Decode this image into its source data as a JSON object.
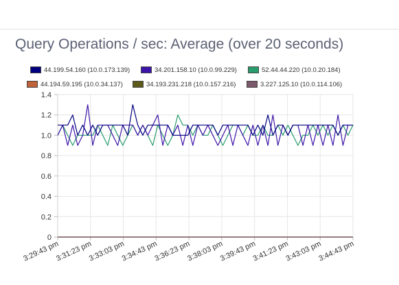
{
  "chart_data": {
    "type": "line",
    "title": "Query Operations / sec: Average (over 20 seconds)",
    "xlabel": "",
    "ylabel": "",
    "ylim": [
      0,
      1.4
    ],
    "yticks": [
      "0",
      "0.2",
      "0.4",
      "0.6",
      "0.8",
      "1.0",
      "1.2",
      "1.4"
    ],
    "grid": true,
    "legend_position": "top",
    "x_tick_labels": [
      "3:29:43 pm",
      "3:31:23 pm",
      "3:33:03 pm",
      "3:34:43 pm",
      "3:36:23 pm",
      "3:38:03 pm",
      "3:39:43 pm",
      "3:41:23 pm",
      "3:43:03 pm",
      "3:44:43 pm"
    ],
    "series": [
      {
        "name": "44.199.54.160 (10.0.173.139)",
        "color": "#00007f",
        "values": [
          1.1,
          1.1,
          1.1,
          1.2,
          1.0,
          1.1,
          1.0,
          1.1,
          1.0,
          1.1,
          1.1,
          1.1,
          1.1,
          1.1,
          1.0,
          1.3,
          1.1,
          1.0,
          1.1,
          1.1,
          1.1,
          1.1,
          1.1,
          1.0,
          1.0,
          1.0,
          1.0,
          1.1,
          1.1,
          1.1,
          1.1,
          1.1,
          1.0,
          1.1,
          1.1,
          1.1,
          1.1,
          1.1,
          1.1,
          1.0,
          1.1,
          1.0,
          1.2,
          1.0,
          1.1,
          1.1,
          1.0,
          1.1,
          1.1,
          1.1,
          1.1,
          1.1,
          1.1,
          1.1,
          1.1,
          1.1,
          1.0,
          1.1,
          1.1,
          1.1
        ]
      },
      {
        "name": "34.201.158.10 (10.0.99.229)",
        "color": "#3d14a8",
        "values": [
          1.0,
          1.1,
          0.9,
          1.1,
          0.9,
          1.0,
          1.3,
          0.9,
          1.1,
          1.1,
          1.1,
          1.0,
          0.9,
          1.1,
          1.1,
          1.1,
          1.0,
          1.1,
          1.0,
          1.1,
          1.2,
          0.9,
          1.1,
          1.0,
          1.1,
          0.9,
          1.1,
          0.9,
          1.1,
          1.0,
          1.1,
          1.0,
          0.9,
          1.0,
          1.1,
          0.9,
          1.1,
          1.0,
          0.9,
          1.1,
          0.9,
          1.1,
          0.9,
          1.2,
          0.9,
          1.1,
          1.0,
          1.1,
          1.1,
          0.9,
          1.1,
          0.9,
          1.1,
          0.9,
          1.1,
          0.9,
          1.2,
          0.9,
          1.1,
          1.1
        ]
      },
      {
        "name": "52.44.44.220 (10.0.20.184)",
        "color": "#2a9d6e",
        "values": [
          1.0,
          1.1,
          1.0,
          0.9,
          1.0,
          1.0,
          1.0,
          1.0,
          1.1,
          1.0,
          0.9,
          1.1,
          1.0,
          0.9,
          1.0,
          1.1,
          1.0,
          1.1,
          1.0,
          0.9,
          1.1,
          1.0,
          0.9,
          1.0,
          1.2,
          1.1,
          1.1,
          1.0,
          1.1,
          1.0,
          1.0,
          1.1,
          1.0,
          0.9,
          1.0,
          1.1,
          1.1,
          1.0,
          1.1,
          1.0,
          1.0,
          1.1,
          1.0,
          1.0,
          1.1,
          1.0,
          1.1,
          1.0,
          0.9,
          1.0,
          1.0,
          1.1,
          1.0,
          1.1,
          1.0,
          1.1,
          1.0,
          1.1,
          1.0,
          1.1
        ]
      },
      {
        "name": "44.194.59.195 (10.0.34.137)",
        "color": "#c0623a",
        "values": [
          0,
          0,
          0,
          0,
          0,
          0,
          0,
          0,
          0,
          0,
          0,
          0,
          0,
          0,
          0,
          0,
          0,
          0,
          0,
          0,
          0,
          0,
          0,
          0,
          0,
          0,
          0,
          0,
          0,
          0,
          0,
          0,
          0,
          0,
          0,
          0,
          0,
          0,
          0,
          0,
          0,
          0,
          0,
          0,
          0,
          0,
          0,
          0,
          0,
          0,
          0,
          0,
          0,
          0,
          0,
          0,
          0,
          0,
          0,
          0
        ]
      },
      {
        "name": "34.193.231.218 (10.0.157.216)",
        "color": "#5e5a1c",
        "values": [
          0,
          0,
          0,
          0,
          0,
          0,
          0,
          0,
          0,
          0,
          0,
          0,
          0,
          0,
          0,
          0,
          0,
          0,
          0,
          0,
          0,
          0,
          0,
          0,
          0,
          0,
          0,
          0,
          0,
          0,
          0,
          0,
          0,
          0,
          0,
          0,
          0,
          0,
          0,
          0,
          0,
          0,
          0,
          0,
          0,
          0,
          0,
          0,
          0,
          0,
          0,
          0,
          0,
          0,
          0,
          0,
          0,
          0,
          0,
          0
        ]
      },
      {
        "name": "3.227.125.10 (10.0.114.106)",
        "color": "#7a5a6b",
        "values": [
          0,
          0,
          0,
          0,
          0,
          0,
          0,
          0,
          0,
          0,
          0,
          0,
          0,
          0,
          0,
          0,
          0,
          0,
          0,
          0,
          0,
          0,
          0,
          0,
          0,
          0,
          0,
          0,
          0,
          0,
          0,
          0,
          0,
          0,
          0,
          0,
          0,
          0,
          0,
          0,
          0,
          0,
          0,
          0,
          0,
          0,
          0,
          0,
          0,
          0,
          0,
          0,
          0,
          0,
          0,
          0,
          0,
          0,
          0,
          0
        ]
      }
    ]
  }
}
